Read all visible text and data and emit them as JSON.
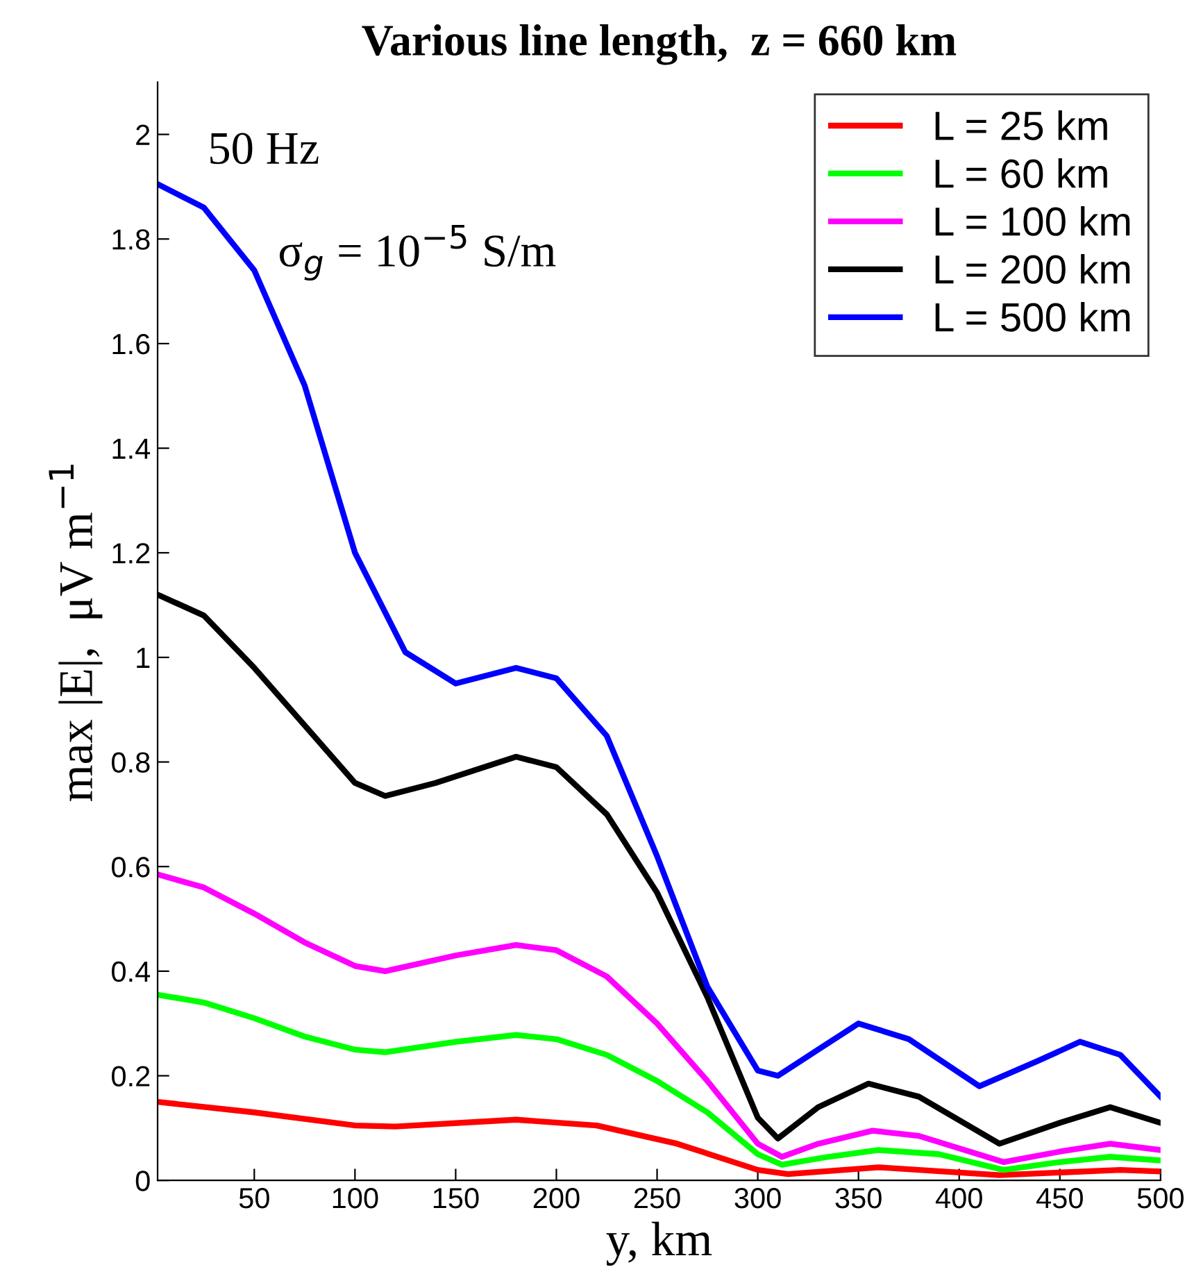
{
  "chart_data": {
    "type": "line",
    "title": "Various line length,  z = 660 km",
    "xlabel": "y, km",
    "ylabel": "max |E|,  μV m$^{−1}$",
    "annotations": [
      "50 Hz",
      "σ$_{g}$ = 10$^{−5}$ S/m"
    ],
    "xlim": [
      2,
      500
    ],
    "ylim": [
      0,
      2.1
    ],
    "xticks": [
      50,
      100,
      150,
      200,
      250,
      300,
      350,
      400,
      450,
      500
    ],
    "yticks": [
      0,
      0.2,
      0.4,
      0.6,
      0.8,
      1,
      1.2,
      1.4,
      1.6,
      1.8,
      2
    ],
    "grid": false,
    "legend": "top right",
    "line_style": "solid",
    "marker": "none",
    "series": [
      {
        "name": "L = 25 km",
        "color": "#ff0000",
        "x": [
          2,
          50,
          100,
          120,
          180,
          220,
          260,
          300,
          315,
          360,
          420,
          480,
          500
        ],
        "values": [
          0.15,
          0.13,
          0.105,
          0.103,
          0.116,
          0.105,
          0.07,
          0.02,
          0.012,
          0.025,
          0.01,
          0.02,
          0.017
        ]
      },
      {
        "name": "L = 60 km",
        "color": "#00ff00",
        "x": [
          2,
          25,
          50,
          75,
          100,
          115,
          150,
          180,
          200,
          225,
          250,
          275,
          300,
          312,
          335,
          360,
          390,
          422,
          450,
          475,
          500
        ],
        "values": [
          0.355,
          0.34,
          0.31,
          0.275,
          0.25,
          0.245,
          0.265,
          0.278,
          0.27,
          0.24,
          0.19,
          0.13,
          0.05,
          0.03,
          0.045,
          0.058,
          0.05,
          0.02,
          0.035,
          0.045,
          0.038
        ]
      },
      {
        "name": "L = 100 km",
        "color": "#ff00ff",
        "x": [
          2,
          25,
          50,
          75,
          100,
          115,
          150,
          180,
          200,
          225,
          250,
          275,
          300,
          312,
          330,
          357,
          380,
          422,
          450,
          475,
          500
        ],
        "values": [
          0.585,
          0.56,
          0.51,
          0.455,
          0.41,
          0.4,
          0.43,
          0.45,
          0.44,
          0.39,
          0.3,
          0.19,
          0.07,
          0.045,
          0.07,
          0.095,
          0.085,
          0.035,
          0.055,
          0.07,
          0.058
        ]
      },
      {
        "name": "L = 200 km",
        "color": "#000000",
        "x": [
          2,
          25,
          50,
          75,
          100,
          115,
          140,
          180,
          200,
          225,
          250,
          275,
          300,
          310,
          330,
          355,
          380,
          420,
          450,
          475,
          500
        ],
        "values": [
          1.12,
          1.08,
          0.98,
          0.87,
          0.76,
          0.735,
          0.76,
          0.81,
          0.79,
          0.7,
          0.55,
          0.35,
          0.12,
          0.08,
          0.14,
          0.185,
          0.16,
          0.07,
          0.11,
          0.14,
          0.11
        ]
      },
      {
        "name": "L = 500 km",
        "color": "#0000ff",
        "x": [
          2,
          25,
          50,
          75,
          100,
          125,
          150,
          180,
          200,
          225,
          250,
          275,
          300,
          310,
          330,
          350,
          375,
          410,
          440,
          460,
          480,
          500
        ],
        "values": [
          1.905,
          1.86,
          1.74,
          1.52,
          1.2,
          1.01,
          0.95,
          0.98,
          0.96,
          0.85,
          0.62,
          0.37,
          0.21,
          0.2,
          0.25,
          0.3,
          0.27,
          0.18,
          0.23,
          0.265,
          0.24,
          0.16
        ]
      }
    ]
  }
}
